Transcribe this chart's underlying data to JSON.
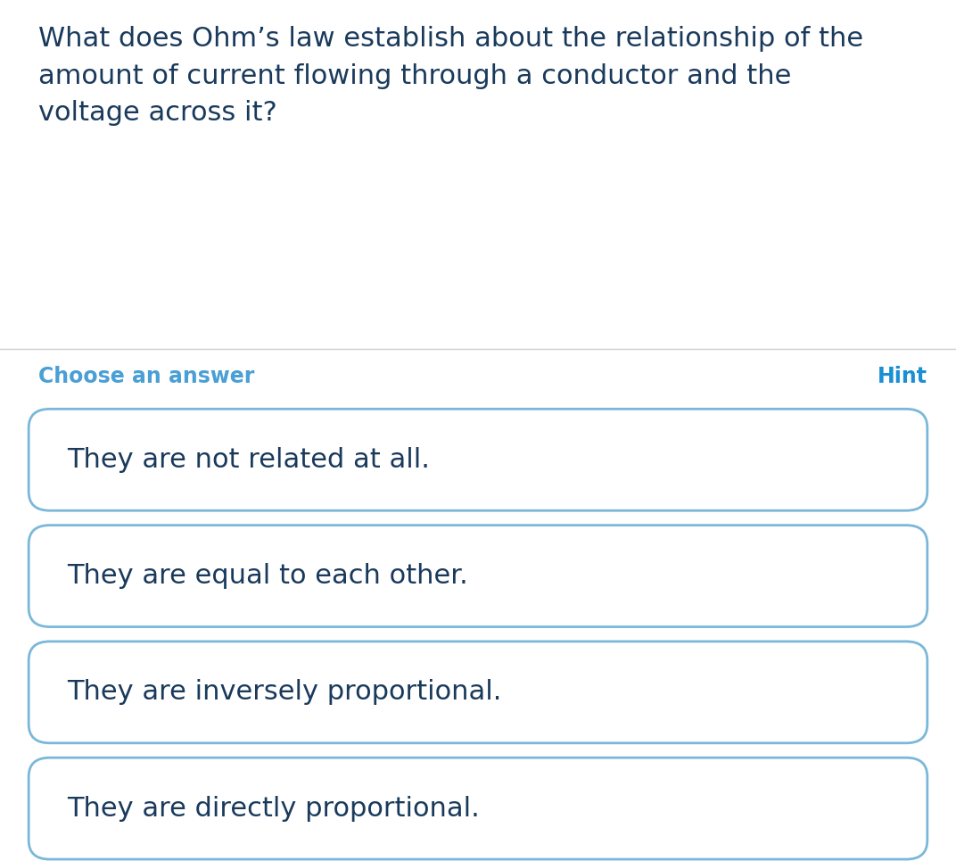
{
  "question": "What does Ohm’s law establish about the relationship of the\namount of current flowing through a conductor and the\nvoltage across it?",
  "choose_label": "Choose an answer",
  "hint_label": "Hint",
  "options": [
    "They are not related at all.",
    "They are equal to each other.",
    "They are inversely proportional.",
    "They are directly proportional."
  ],
  "bg_color": "#ffffff",
  "question_color": "#1a3a5c",
  "choose_color": "#4a9fd4",
  "hint_color": "#1a8fd4",
  "option_text_color": "#1a3a5c",
  "box_border_color": "#7ab8d9",
  "box_bg_color": "#ffffff",
  "separator_color": "#cccccc",
  "question_fontsize": 22,
  "choose_fontsize": 17,
  "hint_fontsize": 17,
  "option_fontsize": 22
}
